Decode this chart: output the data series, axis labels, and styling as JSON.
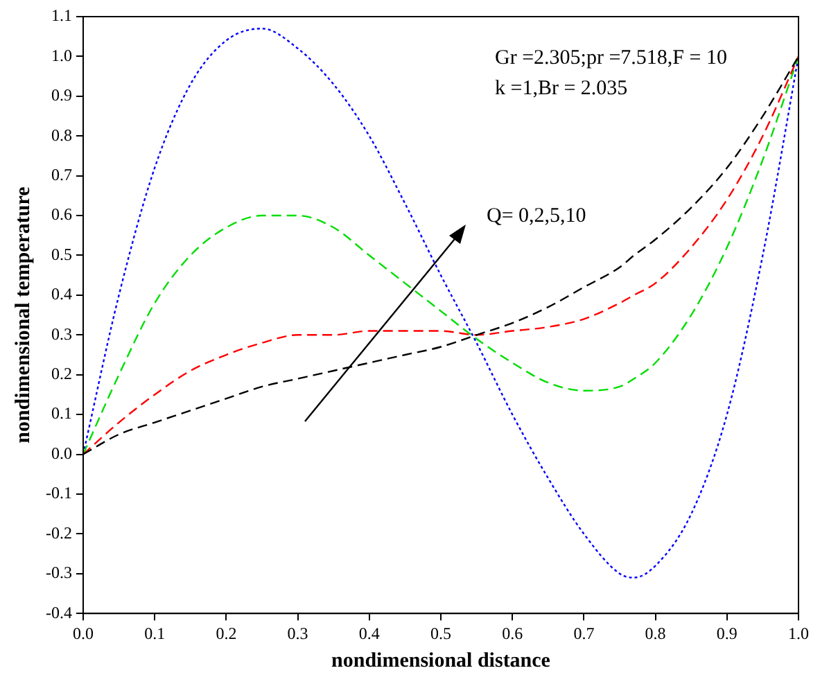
{
  "chart_data": {
    "type": "line",
    "xlabel": "nondimensional distance",
    "ylabel": "nondimensional temperature",
    "x": [
      0,
      0.05,
      0.1,
      0.15,
      0.2,
      0.25,
      0.3,
      0.35,
      0.4,
      0.45,
      0.5,
      0.55,
      0.6,
      0.65,
      0.7,
      0.75,
      0.77,
      0.8,
      0.85,
      0.9,
      0.95,
      1.0
    ],
    "series": [
      {
        "color": "#000000",
        "line_style": "dashed",
        "values": [
          0,
          0.05,
          0.08,
          0.11,
          0.14,
          0.17,
          0.19,
          0.21,
          0.23,
          0.25,
          0.27,
          0.3,
          0.33,
          0.37,
          0.42,
          0.47,
          0.5,
          0.54,
          0.62,
          0.72,
          0.85,
          1.0
        ]
      },
      {
        "color": "#ff0000",
        "line_style": "dashed",
        "values": [
          0,
          0.08,
          0.15,
          0.21,
          0.25,
          0.28,
          0.3,
          0.3,
          0.31,
          0.31,
          0.31,
          0.3,
          0.31,
          0.32,
          0.34,
          0.38,
          0.4,
          0.43,
          0.52,
          0.64,
          0.8,
          1.0
        ]
      },
      {
        "color": "#00dd00",
        "line_style": "dashed",
        "values": [
          0,
          0.2,
          0.38,
          0.5,
          0.57,
          0.6,
          0.6,
          0.57,
          0.5,
          0.43,
          0.36,
          0.29,
          0.23,
          0.18,
          0.16,
          0.17,
          0.19,
          0.23,
          0.35,
          0.52,
          0.74,
          1.0
        ]
      },
      {
        "color": "#0000ff",
        "line_style": "dotted",
        "values": [
          0,
          0.4,
          0.72,
          0.93,
          1.04,
          1.07,
          1.02,
          0.93,
          0.8,
          0.63,
          0.45,
          0.28,
          0.1,
          -0.06,
          -0.2,
          -0.3,
          -0.31,
          -0.28,
          -0.15,
          0.1,
          0.5,
          1.0
        ]
      }
    ],
    "xlim": [
      0,
      1.0
    ],
    "xticks": [
      {
        "value": 0,
        "label": "0.0"
      },
      0.1,
      0.2,
      0.3,
      0.4,
      0.5,
      0.6,
      0.7,
      0.8,
      0.9,
      {
        "value": 1,
        "label": "1.0"
      }
    ],
    "ylim": [
      -0.4,
      1.1
    ],
    "yticks": [
      -0.4,
      -0.3,
      -0.2,
      -0.1,
      {
        "value": 0,
        "label": "0.0"
      },
      0.1,
      0.2,
      0.3,
      0.4,
      0.5,
      0.6,
      0.7,
      0.8,
      0.9,
      {
        "value": 1,
        "label": "1.0"
      },
      1.1
    ],
    "legend": false,
    "marker": "none",
    "annotations": [
      "Gr =2.305;pr =7.518,F = 10",
      "k =1,Br = 2.035",
      "Q= 0,2,5,10"
    ]
  }
}
